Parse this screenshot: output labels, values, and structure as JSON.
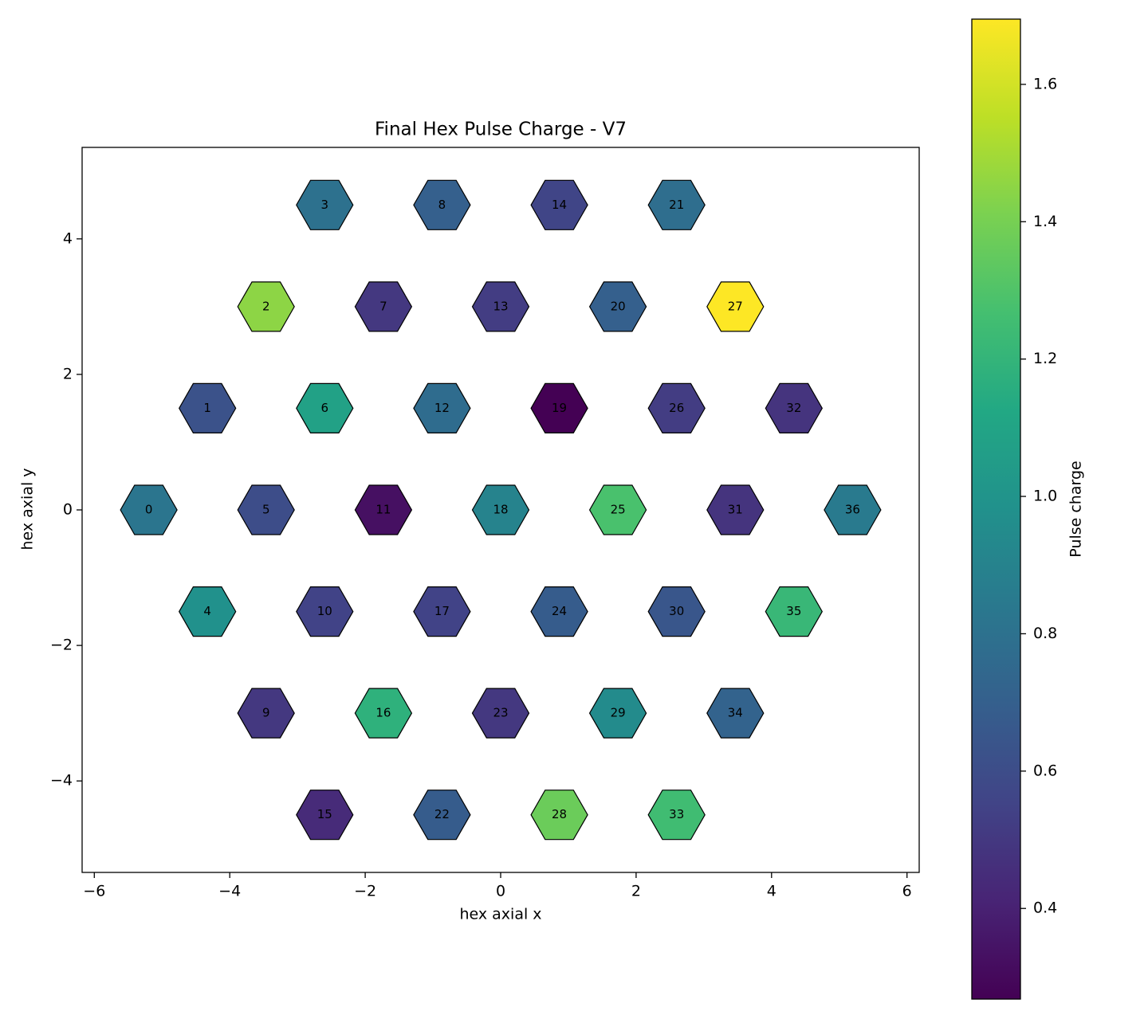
{
  "chart_data": {
    "type": "hex",
    "title": "Final Hex Pulse Charge - V7",
    "x_label": "hex axial x",
    "y_label": "hex axial y",
    "colorbar_label": "Pulse charge",
    "colormap": "viridis",
    "labels": [
      0,
      1,
      2,
      3,
      4,
      5,
      6,
      7,
      8,
      9,
      10,
      11,
      12,
      13,
      14,
      15,
      16,
      17,
      18,
      19,
      20,
      21,
      22,
      23,
      24,
      25,
      26,
      27,
      28,
      29,
      30,
      31,
      32,
      33,
      34,
      35,
      36
    ],
    "x": [
      -5.196,
      -4.33,
      -3.464,
      -2.598,
      -4.33,
      -3.464,
      -2.598,
      -1.732,
      -0.866,
      -3.464,
      -2.598,
      -1.732,
      -0.866,
      0,
      0.866,
      -2.598,
      -1.732,
      -0.866,
      0,
      0.866,
      1.732,
      2.598,
      -0.866,
      0,
      0.866,
      1.732,
      2.598,
      3.464,
      0.866,
      1.732,
      2.598,
      3.464,
      4.33,
      2.598,
      3.464,
      4.33,
      5.196
    ],
    "y": [
      0,
      1.5,
      3,
      4.5,
      -1.5,
      0,
      1.5,
      3,
      4.5,
      -3,
      -1.5,
      0,
      1.5,
      3,
      4.5,
      -4.5,
      -3,
      -1.5,
      0,
      1.5,
      3,
      4.5,
      -4.5,
      -3,
      -1.5,
      0,
      1.5,
      3,
      -4.5,
      -3,
      -1.5,
      0,
      1.5,
      -4.5,
      -3,
      -1.5,
      0
    ],
    "values": [
      0.82,
      0.63,
      1.45,
      0.8,
      0.98,
      0.6,
      1.08,
      0.5,
      0.7,
      0.5,
      0.55,
      0.33,
      0.77,
      0.52,
      0.56,
      0.44,
      1.18,
      0.55,
      0.9,
      0.268,
      0.7,
      0.78,
      0.68,
      0.5,
      0.68,
      1.28,
      0.52,
      1.695,
      1.37,
      0.95,
      0.65,
      0.48,
      0.48,
      1.25,
      0.72,
      1.22,
      0.85
    ],
    "xlim": [
      -6.18,
      6.18
    ],
    "ylim": [
      -5.35,
      5.35
    ],
    "xticks": [
      {
        "value": -6,
        "label": "−6"
      },
      {
        "value": -4,
        "label": "−4"
      },
      {
        "value": -2,
        "label": "−2"
      },
      0,
      2,
      4,
      6
    ],
    "yticks": [
      {
        "value": -4,
        "label": "−4"
      },
      {
        "value": -2,
        "label": "−2"
      },
      0,
      2,
      4
    ],
    "clim": [
      0.268,
      1.695
    ],
    "cticks": [
      0.4,
      0.6,
      0.8,
      {
        "value": 1,
        "label": "1.0"
      },
      1.2,
      1.4,
      1.6
    ]
  }
}
